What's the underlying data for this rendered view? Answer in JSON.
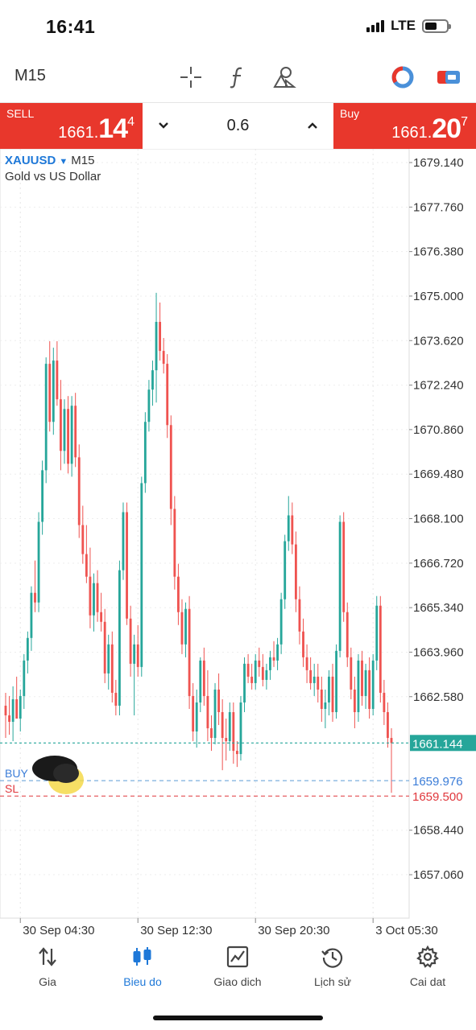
{
  "status": {
    "time": "16:41",
    "network": "LTE",
    "signal_bars": 4,
    "battery_level": 0.45
  },
  "toolbar": {
    "timeframe": "M15",
    "icons": [
      "crosshair-icon",
      "function-icon",
      "objects-icon",
      "indicator-ring-icon",
      "trade-toggle-icon"
    ]
  },
  "trade": {
    "sell_label": "SELL",
    "sell_price_prefix": "1661.",
    "sell_price_big": "14",
    "sell_price_sup": "4",
    "buy_label": "Buy",
    "buy_price_prefix": "1661.",
    "buy_price_big": "20",
    "buy_price_sup": "7",
    "volume": "0.6"
  },
  "chart_header": {
    "symbol": "XAUUSD",
    "timeframe": "M15",
    "description": "Gold vs US Dollar"
  },
  "colors": {
    "bull": "#26a69a",
    "bear": "#ef5350",
    "sell_bg": "#e8372c",
    "buy_bg": "#e8372c",
    "accent": "#1e78d8",
    "bid_tag": "#26a69a",
    "sl_line": "#e0373c",
    "buy_line": "#5b9bd5"
  },
  "chart_data": {
    "type": "candlestick",
    "title": "",
    "xlabel": "",
    "ylabel": "",
    "ylim": [
      1656.1,
      1679.5
    ],
    "y_ticks": [
      "1679.140",
      "1677.760",
      "1676.380",
      "1675.000",
      "1673.620",
      "1672.240",
      "1670.860",
      "1669.480",
      "1668.100",
      "1666.720",
      "1665.340",
      "1663.960",
      "1662.580",
      "1658.440",
      "1657.060"
    ],
    "x_ticks": [
      {
        "label": "30 Sep 04:30",
        "index": 4
      },
      {
        "label": "30 Sep 12:30",
        "index": 36
      },
      {
        "label": "30 Sep 20:30",
        "index": 68
      },
      {
        "label": "3 Oct 05:30",
        "index": 100
      }
    ],
    "current_price": {
      "label": "1661.144",
      "value": 1661.144
    },
    "buy_order": {
      "label": "BUY",
      "price_label": "1659.976",
      "value": 1659.976
    },
    "stop_loss": {
      "label": "SL",
      "price_label": "1659.500",
      "value": 1659.5
    },
    "ohlc": [
      [
        1662.3,
        1662.7,
        1661.3,
        1662.0
      ],
      [
        1662.0,
        1662.6,
        1661.4,
        1661.8
      ],
      [
        1661.8,
        1662.9,
        1661.2,
        1662.5
      ],
      [
        1662.5,
        1663.2,
        1661.9,
        1661.9
      ],
      [
        1661.9,
        1662.8,
        1661.5,
        1662.6
      ],
      [
        1662.6,
        1663.9,
        1662.2,
        1663.7
      ],
      [
        1663.7,
        1664.6,
        1663.3,
        1664.4
      ],
      [
        1664.4,
        1666.0,
        1664.0,
        1665.8
      ],
      [
        1665.8,
        1666.8,
        1665.2,
        1665.5
      ],
      [
        1665.5,
        1668.3,
        1665.2,
        1668.0
      ],
      [
        1668.0,
        1669.9,
        1667.6,
        1669.6
      ],
      [
        1669.6,
        1673.1,
        1669.2,
        1672.9
      ],
      [
        1672.9,
        1673.6,
        1670.8,
        1671.1
      ],
      [
        1671.1,
        1673.4,
        1670.7,
        1673.0
      ],
      [
        1673.0,
        1673.6,
        1671.6,
        1671.8
      ],
      [
        1671.8,
        1672.4,
        1669.6,
        1670.2
      ],
      [
        1670.2,
        1671.8,
        1669.8,
        1671.5
      ],
      [
        1671.5,
        1671.9,
        1669.5,
        1669.8
      ],
      [
        1669.8,
        1671.9,
        1669.4,
        1671.6
      ],
      [
        1671.6,
        1672.0,
        1669.7,
        1670.0
      ],
      [
        1670.0,
        1670.4,
        1667.5,
        1667.9
      ],
      [
        1667.9,
        1668.5,
        1666.7,
        1667.0
      ],
      [
        1667.0,
        1667.9,
        1666.1,
        1666.3
      ],
      [
        1666.3,
        1667.2,
        1664.7,
        1665.1
      ],
      [
        1665.1,
        1666.4,
        1664.6,
        1666.1
      ],
      [
        1666.1,
        1666.5,
        1664.9,
        1665.2
      ],
      [
        1665.2,
        1665.8,
        1664.6,
        1664.9
      ],
      [
        1664.9,
        1665.3,
        1663.0,
        1663.3
      ],
      [
        1663.3,
        1664.5,
        1662.8,
        1664.2
      ],
      [
        1664.2,
        1664.6,
        1662.4,
        1662.7
      ],
      [
        1662.7,
        1663.1,
        1662.0,
        1662.3
      ],
      [
        1662.3,
        1666.8,
        1662.0,
        1666.5
      ],
      [
        1666.5,
        1668.6,
        1666.2,
        1668.3
      ],
      [
        1668.3,
        1668.6,
        1664.8,
        1665.0
      ],
      [
        1665.0,
        1665.4,
        1663.2,
        1663.6
      ],
      [
        1663.6,
        1664.5,
        1662.0,
        1664.2
      ],
      [
        1664.2,
        1664.8,
        1663.2,
        1663.5
      ],
      [
        1663.5,
        1669.4,
        1663.2,
        1669.2
      ],
      [
        1669.2,
        1671.4,
        1668.9,
        1671.1
      ],
      [
        1671.1,
        1672.4,
        1670.8,
        1672.1
      ],
      [
        1672.1,
        1673.0,
        1671.6,
        1672.7
      ],
      [
        1672.7,
        1675.1,
        1671.7,
        1674.2
      ],
      [
        1674.2,
        1674.8,
        1673.0,
        1673.3
      ],
      [
        1673.3,
        1673.7,
        1672.6,
        1672.9
      ],
      [
        1672.9,
        1673.2,
        1670.6,
        1671.0
      ],
      [
        1671.0,
        1671.3,
        1667.9,
        1668.4
      ],
      [
        1668.4,
        1668.8,
        1665.9,
        1666.3
      ],
      [
        1666.3,
        1666.7,
        1664.8,
        1665.2
      ],
      [
        1665.2,
        1665.6,
        1663.9,
        1664.2
      ],
      [
        1664.2,
        1665.5,
        1663.8,
        1665.3
      ],
      [
        1665.3,
        1665.7,
        1662.2,
        1662.6
      ],
      [
        1662.6,
        1663.0,
        1661.2,
        1661.5
      ],
      [
        1661.5,
        1662.8,
        1661.0,
        1662.4
      ],
      [
        1662.4,
        1663.8,
        1662.1,
        1663.7
      ],
      [
        1663.7,
        1664.1,
        1662.3,
        1662.6
      ],
      [
        1662.6,
        1663.4,
        1661.2,
        1661.6
      ],
      [
        1661.6,
        1662.0,
        1660.9,
        1661.3
      ],
      [
        1661.3,
        1663.0,
        1661.1,
        1662.8
      ],
      [
        1662.8,
        1663.3,
        1661.7,
        1662.1
      ],
      [
        1662.1,
        1662.5,
        1660.3,
        1661.3
      ],
      [
        1661.3,
        1661.9,
        1660.6,
        1661.2
      ],
      [
        1661.2,
        1662.4,
        1660.9,
        1662.1
      ],
      [
        1662.1,
        1662.4,
        1660.5,
        1660.9
      ],
      [
        1660.9,
        1661.2,
        1660.4,
        1660.8
      ],
      [
        1660.8,
        1662.6,
        1660.6,
        1662.4
      ],
      [
        1662.4,
        1663.8,
        1662.1,
        1663.6
      ],
      [
        1663.6,
        1663.9,
        1663.0,
        1663.2
      ],
      [
        1663.2,
        1663.6,
        1662.8,
        1663.0
      ],
      [
        1663.0,
        1663.9,
        1662.8,
        1663.7
      ],
      [
        1663.7,
        1664.1,
        1663.2,
        1663.5
      ],
      [
        1663.5,
        1663.9,
        1662.9,
        1663.1
      ],
      [
        1663.1,
        1663.6,
        1662.8,
        1663.4
      ],
      [
        1663.4,
        1664.0,
        1663.1,
        1663.8
      ],
      [
        1663.8,
        1664.3,
        1663.5,
        1663.7
      ],
      [
        1663.7,
        1664.4,
        1663.4,
        1664.2
      ],
      [
        1664.2,
        1665.8,
        1663.9,
        1665.6
      ],
      [
        1665.6,
        1667.6,
        1665.3,
        1667.4
      ],
      [
        1667.4,
        1668.8,
        1667.1,
        1668.2
      ],
      [
        1668.2,
        1668.6,
        1667.0,
        1667.3
      ],
      [
        1667.3,
        1667.7,
        1665.2,
        1665.6
      ],
      [
        1665.6,
        1666.0,
        1664.2,
        1664.6
      ],
      [
        1664.6,
        1665.0,
        1663.5,
        1663.8
      ],
      [
        1663.8,
        1664.2,
        1663.0,
        1663.4
      ],
      [
        1663.4,
        1663.8,
        1662.8,
        1663.0
      ],
      [
        1663.0,
        1663.6,
        1662.6,
        1663.2
      ],
      [
        1663.2,
        1663.6,
        1662.4,
        1662.8
      ],
      [
        1662.8,
        1663.2,
        1661.8,
        1662.2
      ],
      [
        1662.2,
        1662.8,
        1661.6,
        1662.4
      ],
      [
        1662.4,
        1663.4,
        1662.0,
        1663.2
      ],
      [
        1663.2,
        1663.6,
        1661.8,
        1662.1
      ],
      [
        1662.1,
        1664.2,
        1661.9,
        1664.0
      ],
      [
        1664.0,
        1668.2,
        1663.8,
        1668.0
      ],
      [
        1668.0,
        1668.3,
        1664.9,
        1665.2
      ],
      [
        1665.2,
        1665.5,
        1663.5,
        1663.8
      ],
      [
        1663.8,
        1664.1,
        1662.5,
        1662.8
      ],
      [
        1662.8,
        1663.2,
        1661.6,
        1662.1
      ],
      [
        1662.1,
        1663.9,
        1661.8,
        1663.7
      ],
      [
        1663.7,
        1664.0,
        1662.3,
        1662.6
      ],
      [
        1662.6,
        1663.6,
        1662.2,
        1663.4
      ],
      [
        1663.4,
        1663.8,
        1661.9,
        1662.2
      ],
      [
        1662.2,
        1663.9,
        1662.0,
        1663.7
      ],
      [
        1663.7,
        1665.7,
        1663.4,
        1665.4
      ],
      [
        1665.4,
        1665.7,
        1662.4,
        1662.7
      ],
      [
        1662.7,
        1663.1,
        1661.7,
        1662.1
      ],
      [
        1662.1,
        1662.4,
        1661.0,
        1661.3
      ],
      [
        1661.3,
        1661.6,
        1659.6,
        1661.144
      ]
    ]
  },
  "nav": {
    "items": [
      {
        "label": "Gia",
        "icon": "quotes-icon",
        "active": false
      },
      {
        "label": "Bieu do",
        "icon": "chart-icon",
        "active": true
      },
      {
        "label": "Giao dich",
        "icon": "trade-icon",
        "active": false
      },
      {
        "label": "Lịch sử",
        "icon": "history-icon",
        "active": false
      },
      {
        "label": "Cai dat",
        "icon": "settings-icon",
        "active": false
      }
    ]
  }
}
